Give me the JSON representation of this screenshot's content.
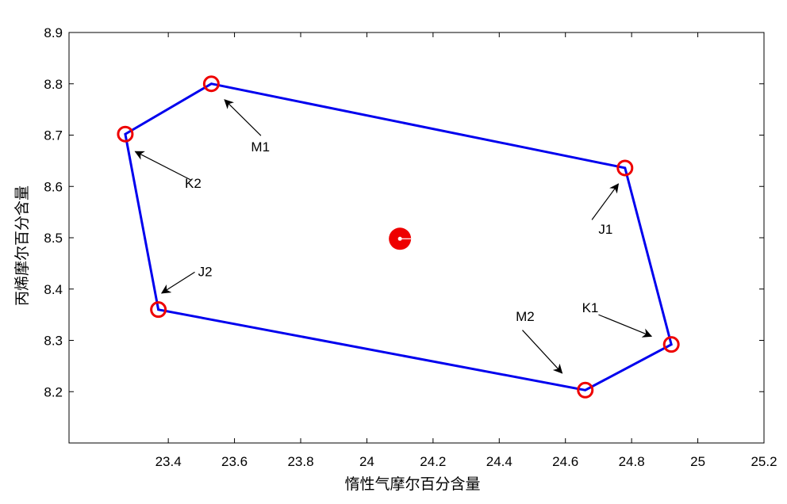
{
  "chart_data": {
    "type": "scatter",
    "title": "",
    "xlabel": "惰性气摩尔百分含量",
    "ylabel": "丙烯摩尔百分含量",
    "xlim": [
      23.1,
      25.2
    ],
    "ylim": [
      8.1,
      8.9
    ],
    "x_ticks": [
      "23.4",
      "23.6",
      "23.8",
      "24",
      "24.2",
      "24.4",
      "24.6",
      "24.8",
      "25",
      "25.2"
    ],
    "x_tick_values": [
      23.4,
      23.6,
      23.8,
      24.0,
      24.2,
      24.4,
      24.6,
      24.8,
      25.0,
      25.2
    ],
    "y_ticks": [
      "8.2",
      "8.3",
      "8.4",
      "8.5",
      "8.6",
      "8.7",
      "8.8",
      "8.9"
    ],
    "y_tick_values": [
      8.2,
      8.3,
      8.4,
      8.5,
      8.6,
      8.7,
      8.8,
      8.9
    ],
    "grid": false,
    "polygon": {
      "color": "#0000ee",
      "points": [
        {
          "x": 23.53,
          "y": 8.8
        },
        {
          "x": 24.78,
          "y": 8.636
        },
        {
          "x": 24.92,
          "y": 8.292
        },
        {
          "x": 24.66,
          "y": 8.203
        },
        {
          "x": 23.37,
          "y": 8.36
        },
        {
          "x": 23.27,
          "y": 8.702
        }
      ]
    },
    "vertex_marker_color": "#ee0000",
    "center_point": {
      "x": 24.1,
      "y": 8.498,
      "color": "#ee0000"
    },
    "annotations": [
      {
        "label": "M1",
        "text": {
          "x": 23.65,
          "y": 8.668
        },
        "arrow_from": {
          "x": 23.68,
          "y": 8.699
        },
        "arrow_to": {
          "x": 23.57,
          "y": 8.769
        }
      },
      {
        "label": "K2",
        "text": {
          "x": 23.45,
          "y": 8.597
        },
        "arrow_from": {
          "x": 23.47,
          "y": 8.612
        },
        "arrow_to": {
          "x": 23.3,
          "y": 8.668
        }
      },
      {
        "label": "J1",
        "text": {
          "x": 24.7,
          "y": 8.508
        },
        "arrow_from": {
          "x": 24.68,
          "y": 8.535
        },
        "arrow_to": {
          "x": 24.76,
          "y": 8.605
        }
      },
      {
        "label": "J2",
        "text": {
          "x": 23.49,
          "y": 8.425
        },
        "arrow_from": {
          "x": 23.48,
          "y": 8.433
        },
        "arrow_to": {
          "x": 23.38,
          "y": 8.392
        }
      },
      {
        "label": "M2",
        "text": {
          "x": 24.45,
          "y": 8.338
        },
        "arrow_from": {
          "x": 24.47,
          "y": 8.32
        },
        "arrow_to": {
          "x": 24.59,
          "y": 8.236
        }
      },
      {
        "label": "K1",
        "text": {
          "x": 24.65,
          "y": 8.355
        },
        "arrow_from": {
          "x": 24.7,
          "y": 8.35
        },
        "arrow_to": {
          "x": 24.86,
          "y": 8.308
        }
      }
    ]
  }
}
